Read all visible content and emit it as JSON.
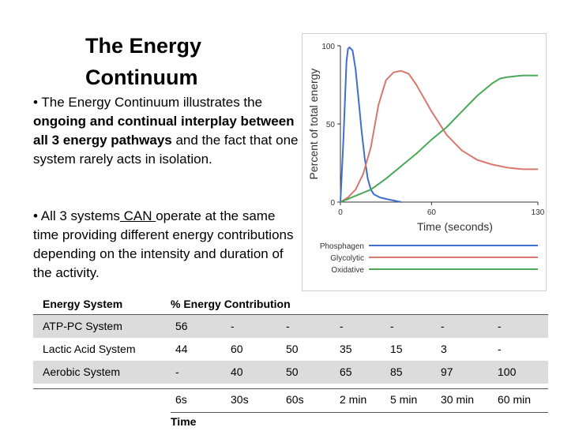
{
  "title_line1": "The Energy",
  "title_line2": "Continuum",
  "para1": {
    "part1": "• The Energy Continuum illustrates the ",
    "bold": "ongoing and continual interplay between all 3 energy pathways",
    "part2": " and the fact that one system rarely acts in isolation."
  },
  "para2": {
    "part1": "• All 3 systems",
    "underline": " CAN ",
    "part2": "operate at the same time providing different energy contributions depending on the intensity and duration of the activity."
  },
  "chart_data": {
    "type": "line",
    "title": "",
    "xlabel": "Time (seconds)",
    "ylabel": "Percent of total energy",
    "xlim": [
      0,
      130
    ],
    "ylim": [
      0,
      100
    ],
    "xticks": [
      "0",
      "60",
      "130"
    ],
    "yticks": [
      "0",
      "50",
      "100"
    ],
    "series": [
      {
        "name": "Phosphagen",
        "color": "#3f6fcf",
        "x": [
          0,
          2,
          4,
          5,
          6,
          8,
          10,
          12,
          14,
          16,
          18,
          20,
          22,
          26,
          30,
          35,
          40
        ],
        "y": [
          0,
          40,
          90,
          98,
          99,
          97,
          85,
          65,
          45,
          28,
          15,
          8,
          5,
          3,
          2,
          1,
          0
        ]
      },
      {
        "name": "Glycolytic",
        "color": "#d8786e",
        "x": [
          0,
          5,
          10,
          15,
          20,
          25,
          30,
          35,
          40,
          45,
          50,
          60,
          70,
          80,
          90,
          100,
          110,
          120,
          130
        ],
        "y": [
          0,
          3,
          8,
          18,
          35,
          62,
          78,
          83,
          84,
          82,
          75,
          58,
          43,
          33,
          27,
          24,
          22,
          21,
          21
        ]
      },
      {
        "name": "Oxidative",
        "color": "#4aa856",
        "x": [
          0,
          10,
          20,
          30,
          40,
          50,
          60,
          70,
          80,
          90,
          100,
          105,
          110,
          120,
          130
        ],
        "y": [
          0,
          4,
          8,
          15,
          23,
          31,
          40,
          48,
          58,
          68,
          76,
          79,
          80,
          81,
          81
        ]
      }
    ]
  },
  "table": {
    "header_system": "Energy System",
    "header_contribution": "% Energy Contribution",
    "rows": [
      {
        "label": "ATP-PC System",
        "values": [
          "56",
          "-",
          "-",
          "-",
          "-",
          "-",
          "-"
        ]
      },
      {
        "label": "Lactic Acid System",
        "values": [
          "44",
          "60",
          "50",
          "35",
          "15",
          "3",
          "-"
        ]
      },
      {
        "label": "Aerobic System",
        "values": [
          "-",
          "40",
          "50",
          "65",
          "85",
          "97",
          "100"
        ]
      }
    ],
    "times": [
      "6s",
      "30s",
      "60s",
      "2 min",
      "5 min",
      "30 min",
      "60 min"
    ],
    "time_label": "Time"
  }
}
